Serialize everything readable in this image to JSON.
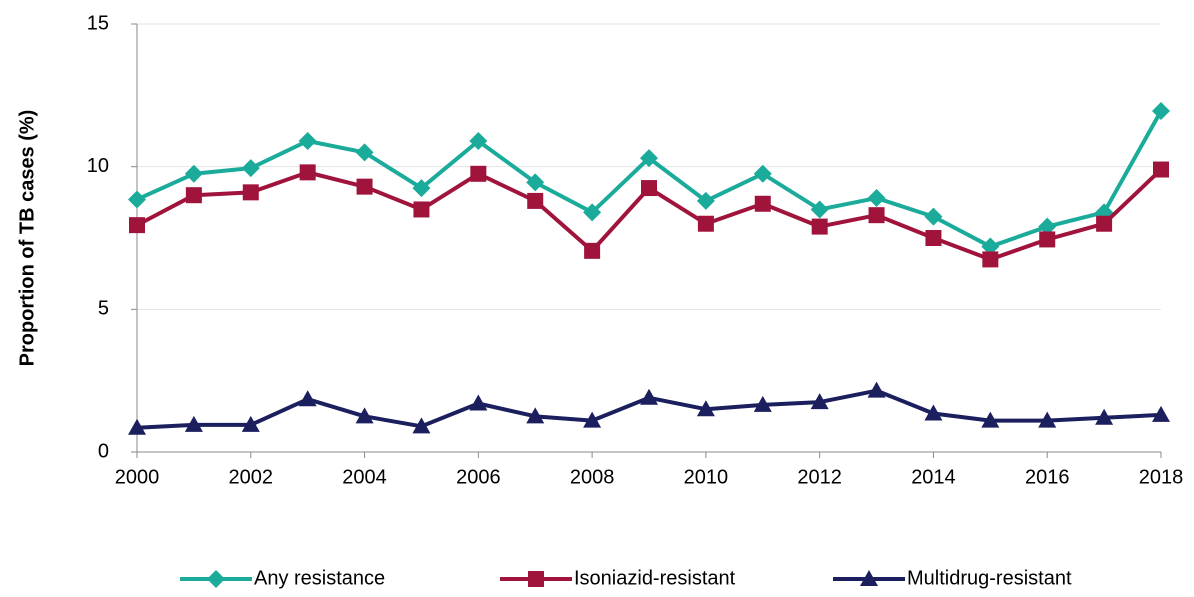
{
  "chart_data": {
    "type": "line",
    "y_label": "Proportion of TB cases (%)",
    "x": [
      2000,
      2001,
      2002,
      2003,
      2004,
      2005,
      2006,
      2007,
      2008,
      2009,
      2010,
      2011,
      2012,
      2013,
      2014,
      2015,
      2016,
      2017,
      2018
    ],
    "xlim": [
      2000,
      2018
    ],
    "xticks": [
      2000,
      2002,
      2004,
      2006,
      2008,
      2010,
      2012,
      2014,
      2016,
      2018
    ],
    "ylim": [
      0,
      15
    ],
    "yticks": [
      0,
      5,
      10,
      15
    ],
    "grid": true,
    "legend": "bottom",
    "series": [
      {
        "name": "Any resistance",
        "color": "#1aab9b",
        "marker": "diamond",
        "values": [
          8.85,
          9.75,
          9.95,
          10.9,
          10.5,
          9.25,
          10.9,
          9.45,
          8.4,
          10.3,
          8.8,
          9.75,
          8.5,
          8.9,
          8.25,
          7.2,
          7.9,
          8.4,
          11.95
        ]
      },
      {
        "name": "Isoniazid-resistant",
        "color": "#a0143c",
        "marker": "square",
        "values": [
          7.95,
          9.0,
          9.1,
          9.8,
          9.3,
          8.5,
          9.75,
          8.8,
          7.05,
          9.25,
          8.0,
          8.7,
          7.9,
          8.3,
          7.5,
          6.75,
          7.45,
          8.0,
          9.9
        ]
      },
      {
        "name": "Multidrug-resistant",
        "color": "#1b1f5e",
        "marker": "triangle",
        "values": [
          0.85,
          0.95,
          0.95,
          1.85,
          1.25,
          0.9,
          1.7,
          1.25,
          1.1,
          1.9,
          1.5,
          1.65,
          1.75,
          2.15,
          1.35,
          1.1,
          1.1,
          1.2,
          1.3
        ]
      }
    ]
  }
}
